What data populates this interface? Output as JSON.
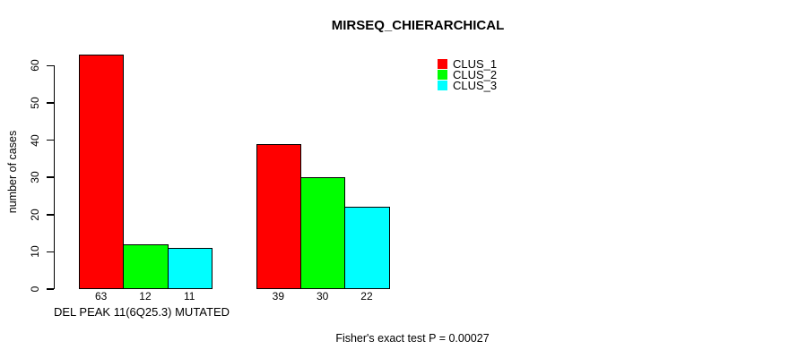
{
  "chart_data": {
    "type": "bar",
    "title": "MIRSEQ_CHIERARCHICAL",
    "xlabel": "",
    "ylabel": "number of cases",
    "categories": [
      "DEL PEAK 11(6Q25.3) MUTATED",
      ""
    ],
    "series": [
      {
        "name": "CLUS_1",
        "color": "#ff0000",
        "values": [
          63,
          39
        ]
      },
      {
        "name": "CLUS_2",
        "color": "#00ff00",
        "values": [
          12,
          30
        ]
      },
      {
        "name": "CLUS_3",
        "color": "#00ffff",
        "values": [
          11,
          22
        ]
      }
    ],
    "yticks": [
      0,
      10,
      20,
      30,
      40,
      50,
      60
    ],
    "ylim": [
      0,
      63
    ],
    "grid": false,
    "legend_position": "top-right",
    "bar_border_color": "#000000",
    "annotation": "Fisher's exact test P = 0.00027"
  }
}
